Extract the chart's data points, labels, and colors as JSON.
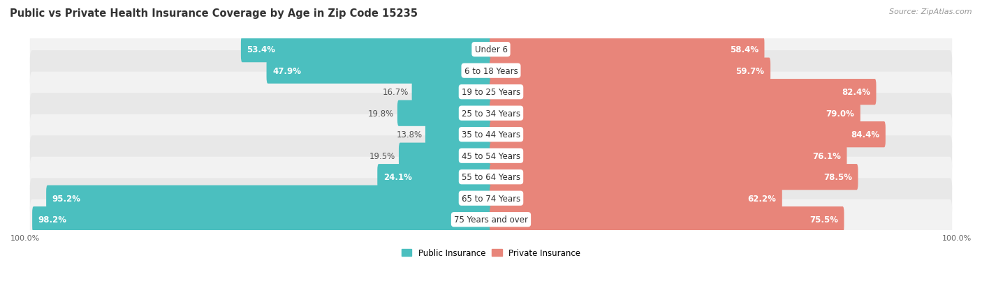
{
  "title": "Public vs Private Health Insurance Coverage by Age in Zip Code 15235",
  "source": "Source: ZipAtlas.com",
  "categories": [
    "Under 6",
    "6 to 18 Years",
    "19 to 25 Years",
    "25 to 34 Years",
    "35 to 44 Years",
    "45 to 54 Years",
    "55 to 64 Years",
    "65 to 74 Years",
    "75 Years and over"
  ],
  "public_values": [
    53.4,
    47.9,
    16.7,
    19.8,
    13.8,
    19.5,
    24.1,
    95.2,
    98.2
  ],
  "private_values": [
    58.4,
    59.7,
    82.4,
    79.0,
    84.4,
    76.1,
    78.5,
    62.2,
    75.5
  ],
  "public_color": "#4BBFBF",
  "private_color": "#E8857A",
  "row_bg_even": "#F2F2F2",
  "row_bg_odd": "#E8E8E8",
  "title_fontsize": 10.5,
  "label_fontsize": 8.5,
  "value_fontsize": 8.5,
  "tick_fontsize": 8,
  "source_fontsize": 8,
  "bar_height": 0.62,
  "figsize": [
    14.06,
    4.14
  ],
  "dpi": 100
}
